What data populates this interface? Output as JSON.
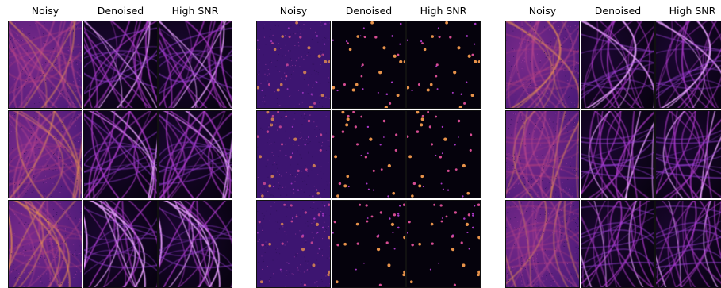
{
  "panels": [
    {
      "columns": [
        "Noisy",
        "Denoised",
        "High SNR"
      ],
      "structure": "filaments",
      "rows": 3
    },
    {
      "columns": [
        "Noisy",
        "Denoised",
        "High SNR"
      ],
      "structure": "puncta",
      "rows": 3
    },
    {
      "columns": [
        "Noisy",
        "Denoised",
        "High SNR"
      ],
      "structure": "filaments",
      "rows": 3
    }
  ],
  "colormap": {
    "name": "magma",
    "noisy_background": "#4a1a78",
    "clean_background": "#07020f",
    "signal_mid": "#b23bcf",
    "signal_high": "#f39a4e"
  }
}
